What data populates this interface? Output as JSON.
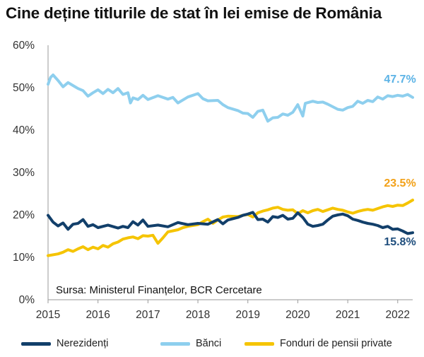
{
  "chart_data": {
    "type": "line",
    "title": "Cine deține titlurile de stat în lei emise de România",
    "xlabel": "",
    "ylabel": "",
    "x_ticks": [
      "2015",
      "2016",
      "2017",
      "2018",
      "2019",
      "2020",
      "2021",
      "2022"
    ],
    "x_tick_values": [
      2015,
      2016,
      2017,
      2018,
      2019,
      2020,
      2021,
      2022
    ],
    "xlim": [
      2015,
      2022.3
    ],
    "y_ticks": [
      "0%",
      "10%",
      "20%",
      "30%",
      "40%",
      "50%",
      "60%"
    ],
    "ylim": [
      0,
      60
    ],
    "grid": false,
    "legend_position": "bottom",
    "source": "Sursa: Ministerul Finanțelor, BCR Cercetare",
    "series": [
      {
        "name": "Nerezidenți",
        "color": "#123f6a",
        "end_label": "15.8%",
        "points": [
          [
            2015.0,
            19.9
          ],
          [
            2015.1,
            18.3
          ],
          [
            2015.2,
            17.4
          ],
          [
            2015.3,
            18.1
          ],
          [
            2015.4,
            16.6
          ],
          [
            2015.5,
            17.8
          ],
          [
            2015.6,
            18.0
          ],
          [
            2015.7,
            18.9
          ],
          [
            2015.8,
            17.3
          ],
          [
            2015.9,
            17.7
          ],
          [
            2016.0,
            17.0
          ],
          [
            2016.2,
            17.6
          ],
          [
            2016.4,
            16.9
          ],
          [
            2016.5,
            17.3
          ],
          [
            2016.6,
            17.0
          ],
          [
            2016.7,
            18.4
          ],
          [
            2016.8,
            17.6
          ],
          [
            2016.9,
            18.8
          ],
          [
            2017.0,
            17.3
          ],
          [
            2017.2,
            17.6
          ],
          [
            2017.4,
            17.2
          ],
          [
            2017.6,
            18.2
          ],
          [
            2017.8,
            17.7
          ],
          [
            2018.0,
            18.0
          ],
          [
            2018.2,
            17.8
          ],
          [
            2018.4,
            18.9
          ],
          [
            2018.5,
            17.9
          ],
          [
            2018.6,
            18.8
          ],
          [
            2018.8,
            19.4
          ],
          [
            2018.9,
            19.9
          ],
          [
            2019.0,
            20.2
          ],
          [
            2019.1,
            20.6
          ],
          [
            2019.2,
            18.9
          ],
          [
            2019.3,
            19.0
          ],
          [
            2019.4,
            18.3
          ],
          [
            2019.5,
            19.6
          ],
          [
            2019.6,
            19.4
          ],
          [
            2019.7,
            19.9
          ],
          [
            2019.8,
            19.0
          ],
          [
            2019.9,
            19.2
          ],
          [
            2020.0,
            20.5
          ],
          [
            2020.1,
            19.4
          ],
          [
            2020.2,
            17.8
          ],
          [
            2020.3,
            17.3
          ],
          [
            2020.4,
            17.5
          ],
          [
            2020.5,
            17.8
          ],
          [
            2020.6,
            18.8
          ],
          [
            2020.7,
            19.7
          ],
          [
            2020.8,
            20.0
          ],
          [
            2020.9,
            20.2
          ],
          [
            2021.0,
            19.8
          ],
          [
            2021.1,
            19.0
          ],
          [
            2021.2,
            18.7
          ],
          [
            2021.3,
            18.3
          ],
          [
            2021.4,
            18.0
          ],
          [
            2021.5,
            17.8
          ],
          [
            2021.6,
            17.5
          ],
          [
            2021.7,
            17.0
          ],
          [
            2021.8,
            17.3
          ],
          [
            2021.9,
            16.6
          ],
          [
            2022.0,
            16.7
          ],
          [
            2022.1,
            16.2
          ],
          [
            2022.2,
            15.6
          ],
          [
            2022.3,
            15.8
          ]
        ]
      },
      {
        "name": "Bănci",
        "color": "#8ecfee",
        "end_label": "47.7%",
        "points": [
          [
            2015.0,
            50.8
          ],
          [
            2015.05,
            52.4
          ],
          [
            2015.1,
            53.0
          ],
          [
            2015.2,
            51.7
          ],
          [
            2015.3,
            50.2
          ],
          [
            2015.4,
            51.2
          ],
          [
            2015.5,
            50.5
          ],
          [
            2015.6,
            49.8
          ],
          [
            2015.7,
            49.3
          ],
          [
            2015.8,
            48.0
          ],
          [
            2015.9,
            48.8
          ],
          [
            2016.0,
            49.5
          ],
          [
            2016.1,
            48.6
          ],
          [
            2016.2,
            49.6
          ],
          [
            2016.3,
            48.8
          ],
          [
            2016.4,
            49.8
          ],
          [
            2016.5,
            48.4
          ],
          [
            2016.6,
            48.8
          ],
          [
            2016.65,
            46.4
          ],
          [
            2016.7,
            47.6
          ],
          [
            2016.8,
            47.2
          ],
          [
            2016.9,
            48.2
          ],
          [
            2017.0,
            47.2
          ],
          [
            2017.2,
            48.1
          ],
          [
            2017.4,
            47.3
          ],
          [
            2017.5,
            47.7
          ],
          [
            2017.6,
            46.4
          ],
          [
            2017.8,
            47.8
          ],
          [
            2018.0,
            48.6
          ],
          [
            2018.1,
            47.4
          ],
          [
            2018.2,
            46.9
          ],
          [
            2018.4,
            47.0
          ],
          [
            2018.5,
            46.0
          ],
          [
            2018.6,
            45.3
          ],
          [
            2018.8,
            44.6
          ],
          [
            2018.9,
            44.0
          ],
          [
            2019.0,
            43.9
          ],
          [
            2019.1,
            43.0
          ],
          [
            2019.2,
            44.4
          ],
          [
            2019.3,
            44.7
          ],
          [
            2019.4,
            42.1
          ],
          [
            2019.5,
            42.9
          ],
          [
            2019.6,
            43.0
          ],
          [
            2019.7,
            43.8
          ],
          [
            2019.8,
            43.5
          ],
          [
            2019.9,
            44.2
          ],
          [
            2020.0,
            46.0
          ],
          [
            2020.1,
            43.3
          ],
          [
            2020.15,
            46.3
          ],
          [
            2020.3,
            46.8
          ],
          [
            2020.4,
            46.5
          ],
          [
            2020.5,
            46.6
          ],
          [
            2020.6,
            46.1
          ],
          [
            2020.7,
            45.5
          ],
          [
            2020.8,
            44.9
          ],
          [
            2020.9,
            44.7
          ],
          [
            2021.0,
            45.3
          ],
          [
            2021.1,
            45.6
          ],
          [
            2021.2,
            46.8
          ],
          [
            2021.3,
            46.3
          ],
          [
            2021.4,
            47.0
          ],
          [
            2021.5,
            46.7
          ],
          [
            2021.6,
            47.8
          ],
          [
            2021.7,
            47.3
          ],
          [
            2021.8,
            48.1
          ],
          [
            2021.9,
            47.9
          ],
          [
            2022.0,
            48.2
          ],
          [
            2022.1,
            48.0
          ],
          [
            2022.2,
            48.4
          ],
          [
            2022.3,
            47.7
          ]
        ]
      },
      {
        "name": "Fonduri de pensii private",
        "color": "#f5c400",
        "end_label": "23.5%",
        "points": [
          [
            2015.0,
            10.4
          ],
          [
            2015.2,
            10.8
          ],
          [
            2015.3,
            11.2
          ],
          [
            2015.4,
            11.8
          ],
          [
            2015.5,
            11.4
          ],
          [
            2015.6,
            12.0
          ],
          [
            2015.7,
            12.5
          ],
          [
            2015.8,
            11.8
          ],
          [
            2015.9,
            12.4
          ],
          [
            2016.0,
            12.0
          ],
          [
            2016.1,
            12.8
          ],
          [
            2016.2,
            12.4
          ],
          [
            2016.3,
            13.2
          ],
          [
            2016.4,
            13.6
          ],
          [
            2016.5,
            14.3
          ],
          [
            2016.6,
            14.6
          ],
          [
            2016.7,
            14.8
          ],
          [
            2016.8,
            14.4
          ],
          [
            2016.9,
            15.1
          ],
          [
            2017.0,
            15.0
          ],
          [
            2017.1,
            15.2
          ],
          [
            2017.2,
            13.3
          ],
          [
            2017.3,
            14.6
          ],
          [
            2017.4,
            16.0
          ],
          [
            2017.6,
            16.5
          ],
          [
            2017.7,
            17.0
          ],
          [
            2017.8,
            17.3
          ],
          [
            2018.0,
            17.7
          ],
          [
            2018.1,
            18.4
          ],
          [
            2018.2,
            19.0
          ],
          [
            2018.3,
            18.0
          ],
          [
            2018.4,
            18.8
          ],
          [
            2018.5,
            19.5
          ],
          [
            2018.6,
            19.7
          ],
          [
            2018.8,
            19.6
          ],
          [
            2018.9,
            19.9
          ],
          [
            2019.0,
            20.1
          ],
          [
            2019.1,
            19.5
          ],
          [
            2019.2,
            20.5
          ],
          [
            2019.3,
            20.9
          ],
          [
            2019.4,
            21.2
          ],
          [
            2019.5,
            21.6
          ],
          [
            2019.6,
            21.8
          ],
          [
            2019.7,
            21.3
          ],
          [
            2019.8,
            21.1
          ],
          [
            2019.9,
            21.2
          ],
          [
            2020.0,
            20.3
          ],
          [
            2020.1,
            21.0
          ],
          [
            2020.2,
            20.5
          ],
          [
            2020.3,
            21.0
          ],
          [
            2020.4,
            21.3
          ],
          [
            2020.5,
            20.8
          ],
          [
            2020.6,
            21.2
          ],
          [
            2020.7,
            21.6
          ],
          [
            2020.8,
            21.3
          ],
          [
            2020.9,
            21.1
          ],
          [
            2021.0,
            20.7
          ],
          [
            2021.1,
            20.4
          ],
          [
            2021.2,
            20.8
          ],
          [
            2021.3,
            21.1
          ],
          [
            2021.4,
            21.3
          ],
          [
            2021.5,
            21.1
          ],
          [
            2021.6,
            21.5
          ],
          [
            2021.7,
            21.9
          ],
          [
            2021.8,
            22.2
          ],
          [
            2021.9,
            22.0
          ],
          [
            2022.0,
            22.3
          ],
          [
            2022.1,
            22.2
          ],
          [
            2022.2,
            22.8
          ],
          [
            2022.3,
            23.5
          ]
        ]
      }
    ]
  }
}
